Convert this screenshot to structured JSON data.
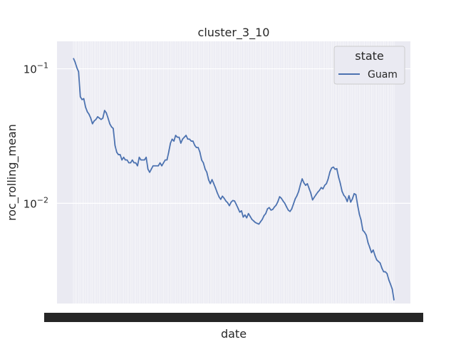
{
  "chart_data": {
    "type": "line",
    "title": "cluster_3_10",
    "xlabel": "date",
    "ylabel": "roc_rolling_mean",
    "yscale": "log",
    "ylim": [
      0.0018,
      0.16
    ],
    "yticks": [
      {
        "value": 0.1,
        "mantissa": "10",
        "exp": "−1"
      },
      {
        "value": 0.01,
        "mantissa": "10",
        "exp": "−2"
      }
    ],
    "x_tick_labels_overlapping": "illegible dense date labels",
    "grid": true,
    "legend": {
      "title": "state",
      "placement": "top-right"
    },
    "colors": {
      "series": "#4c72b0",
      "background": "#eaeaf2",
      "grid": "#ffffff"
    },
    "series": [
      {
        "name": "Guam",
        "values": [
          0.12,
          0.112,
          0.102,
          0.095,
          0.062,
          0.059,
          0.06,
          0.052,
          0.048,
          0.046,
          0.043,
          0.039,
          0.041,
          0.042,
          0.044,
          0.043,
          0.042,
          0.043,
          0.049,
          0.047,
          0.043,
          0.039,
          0.037,
          0.036,
          0.027,
          0.024,
          0.023,
          0.023,
          0.021,
          0.022,
          0.021,
          0.021,
          0.02,
          0.02,
          0.021,
          0.02,
          0.02,
          0.019,
          0.022,
          0.021,
          0.021,
          0.021,
          0.022,
          0.018,
          0.017,
          0.018,
          0.019,
          0.019,
          0.019,
          0.019,
          0.02,
          0.019,
          0.02,
          0.021,
          0.021,
          0.024,
          0.028,
          0.03,
          0.029,
          0.032,
          0.031,
          0.031,
          0.028,
          0.03,
          0.031,
          0.032,
          0.03,
          0.03,
          0.029,
          0.029,
          0.027,
          0.026,
          0.026,
          0.024,
          0.021,
          0.02,
          0.018,
          0.017,
          0.015,
          0.014,
          0.015,
          0.014,
          0.013,
          0.012,
          0.0112,
          0.0107,
          0.0113,
          0.0109,
          0.0104,
          0.0101,
          0.0096,
          0.0102,
          0.0105,
          0.0104,
          0.0098,
          0.0092,
          0.0086,
          0.0088,
          0.0079,
          0.0082,
          0.0078,
          0.0084,
          0.008,
          0.0076,
          0.0074,
          0.0072,
          0.0071,
          0.007,
          0.0073,
          0.0076,
          0.0081,
          0.0084,
          0.0091,
          0.0093,
          0.0089,
          0.009,
          0.0094,
          0.0097,
          0.0103,
          0.0112,
          0.0109,
          0.0104,
          0.01,
          0.0094,
          0.0089,
          0.0087,
          0.0091,
          0.0099,
          0.0108,
          0.0114,
          0.0123,
          0.0138,
          0.0152,
          0.0142,
          0.0136,
          0.014,
          0.0129,
          0.0119,
          0.0106,
          0.0111,
          0.0116,
          0.0121,
          0.0125,
          0.0131,
          0.0128,
          0.0136,
          0.014,
          0.0152,
          0.0171,
          0.0183,
          0.0186,
          0.0179,
          0.0181,
          0.0157,
          0.0141,
          0.0123,
          0.0115,
          0.0111,
          0.0103,
          0.0114,
          0.0102,
          0.0108,
          0.0118,
          0.0116,
          0.0097,
          0.0083,
          0.0075,
          0.0063,
          0.0061,
          0.0058,
          0.0051,
          0.0047,
          0.0043,
          0.0045,
          0.0041,
          0.0038,
          0.0037,
          0.0036,
          0.0033,
          0.0031,
          0.0031,
          0.003,
          0.0027,
          0.0025,
          0.0023,
          0.0019
        ]
      }
    ]
  }
}
